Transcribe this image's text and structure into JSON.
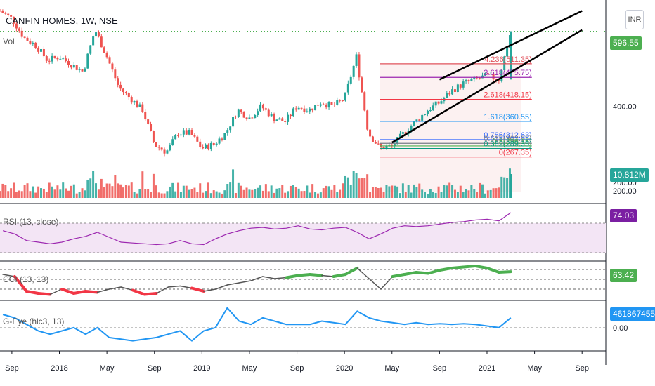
{
  "header": {
    "title": "CANFIN HOMES, 1W, NSE",
    "volume_label": "Vol",
    "currency": "INR"
  },
  "chart_data": [
    {
      "type": "candlestick",
      "title": "CANFIN HOMES, 1W, NSE",
      "ylim": [
        160,
        660
      ],
      "y_ticks": [
        200.0,
        400.0
      ],
      "last_price": 596.55,
      "colors": {
        "up": "#26a69a",
        "down": "#ef5350",
        "bg_band": "#fcf1f1"
      },
      "x_tick_labels": [
        "Sep",
        "2018",
        "May",
        "Sep",
        "2019",
        "May",
        "Sep",
        "2020",
        "May",
        "Sep",
        "2021",
        "May",
        "Sep"
      ],
      "close_series": [
        {
          "x": "2017-08",
          "y": 650
        },
        {
          "x": "2017-09",
          "y": 630
        },
        {
          "x": "2017-10",
          "y": 580
        },
        {
          "x": "2017-11",
          "y": 560
        },
        {
          "x": "2017-12",
          "y": 520
        },
        {
          "x": "2018-01",
          "y": 530
        },
        {
          "x": "2018-02",
          "y": 510
        },
        {
          "x": "2018-03",
          "y": 490
        },
        {
          "x": "2018-04",
          "y": 600
        },
        {
          "x": "2018-05",
          "y": 530
        },
        {
          "x": "2018-06",
          "y": 450
        },
        {
          "x": "2018-07",
          "y": 420
        },
        {
          "x": "2018-08",
          "y": 390
        },
        {
          "x": "2018-09",
          "y": 300
        },
        {
          "x": "2018-10",
          "y": 280
        },
        {
          "x": "2018-11",
          "y": 330
        },
        {
          "x": "2018-12",
          "y": 330
        },
        {
          "x": "2019-01",
          "y": 290
        },
        {
          "x": "2019-02",
          "y": 300
        },
        {
          "x": "2019-03",
          "y": 330
        },
        {
          "x": "2019-04",
          "y": 390
        },
        {
          "x": "2019-05",
          "y": 370
        },
        {
          "x": "2019-06",
          "y": 400
        },
        {
          "x": "2019-07",
          "y": 370
        },
        {
          "x": "2019-08",
          "y": 360
        },
        {
          "x": "2019-09",
          "y": 400
        },
        {
          "x": "2019-10",
          "y": 390
        },
        {
          "x": "2019-11",
          "y": 410
        },
        {
          "x": "2019-12",
          "y": 400
        },
        {
          "x": "2020-01",
          "y": 420
        },
        {
          "x": "2020-02",
          "y": 530
        },
        {
          "x": "2020-03",
          "y": 330
        },
        {
          "x": "2020-04",
          "y": 290
        },
        {
          "x": "2020-05",
          "y": 295
        },
        {
          "x": "2020-06",
          "y": 330
        },
        {
          "x": "2020-07",
          "y": 360
        },
        {
          "x": "2020-08",
          "y": 390
        },
        {
          "x": "2020-09",
          "y": 410
        },
        {
          "x": "2020-10",
          "y": 440
        },
        {
          "x": "2020-11",
          "y": 460
        },
        {
          "x": "2020-12",
          "y": 470
        },
        {
          "x": "2021-01",
          "y": 480
        },
        {
          "x": "2021-02",
          "y": 470
        },
        {
          "x": "2021-03",
          "y": 596.55
        }
      ],
      "fib_levels": [
        {
          "label": "4.236(511.35)",
          "value": 511.35,
          "color": "#e0525c"
        },
        {
          "label": "3.618(475.75)",
          "value": 475.75,
          "color": "#9c27b0"
        },
        {
          "label": "2.618(418.15)",
          "value": 418.15,
          "color": "#f23645"
        },
        {
          "label": "1.618(360.55)",
          "value": 360.55,
          "color": "#2196f3"
        },
        {
          "label": "0.786(312.63)",
          "value": 312.63,
          "color": "#2962ff"
        },
        {
          "label": "0.618(302.95)",
          "value": 302.95,
          "color": "#787b86"
        },
        {
          "label": "0.5(296.15)",
          "value": 296.15,
          "color": "#4caf50"
        },
        {
          "label": "0.382(289.35)",
          "value": 289.35,
          "color": "#089981"
        },
        {
          "label": "0(267.35)",
          "value": 267.35,
          "color": "#f23645"
        }
      ],
      "trendlines": [
        {
          "from": {
            "x": "2020-05",
            "y": 305
          },
          "to": {
            "x": "2021-09",
            "y": 600
          }
        },
        {
          "from": {
            "x": "2020-09",
            "y": 470
          },
          "to": {
            "x": "2021-09",
            "y": 650
          }
        }
      ]
    },
    {
      "type": "bar",
      "title": "Volume",
      "last_value_label": "10.812M",
      "last_value": 10812000,
      "axis_label": "200.00"
    },
    {
      "type": "line",
      "title": "RSI (13, close)",
      "series_name": "RSI (13, close)",
      "last_value": 74.03,
      "color": "#9c27b0",
      "band_color": "#f3e5f5",
      "values": [
        52,
        48,
        40,
        38,
        36,
        38,
        42,
        45,
        50,
        44,
        38,
        37,
        36,
        35,
        36,
        40,
        36,
        35,
        42,
        48,
        52,
        55,
        56,
        54,
        55,
        58,
        54,
        53,
        55,
        56,
        50,
        42,
        48,
        55,
        58,
        57,
        58,
        60,
        62,
        63,
        65,
        66,
        64,
        74
      ]
    },
    {
      "type": "line",
      "title": "CCI (13, 13)",
      "series_name": "CCI (13, 13)",
      "last_value": 63.42,
      "color_pos": "#4caf50",
      "color_neg": "#f23645",
      "values": [
        50,
        40,
        -30,
        -40,
        -45,
        -20,
        -40,
        -30,
        -35,
        -20,
        -10,
        -25,
        -45,
        -40,
        -10,
        -5,
        -15,
        -30,
        -20,
        0,
        10,
        20,
        40,
        30,
        35,
        45,
        50,
        45,
        40,
        50,
        80,
        30,
        -20,
        40,
        50,
        60,
        55,
        70,
        80,
        85,
        90,
        80,
        60,
        63
      ]
    },
    {
      "type": "line",
      "title": "G-Eye (hlc3, 13)",
      "series_name": "G-Eye (hlc3, 13)",
      "last_value_label": "461867455.19",
      "last_value": 461867455.19,
      "axis_label": "0.00",
      "color": "#2196f3",
      "values": [
        0.7,
        0.6,
        0.4,
        0.2,
        0.1,
        0.2,
        0.3,
        0.1,
        0.3,
        0.0,
        -0.05,
        -0.1,
        -0.05,
        0.0,
        0.1,
        0.2,
        -0.1,
        0.2,
        0.3,
        0.9,
        0.5,
        0.4,
        0.6,
        0.5,
        0.4,
        0.4,
        0.4,
        0.5,
        0.45,
        0.4,
        0.8,
        0.6,
        0.5,
        0.45,
        0.4,
        0.45,
        0.4,
        0.42,
        0.4,
        0.42,
        0.4,
        0.35,
        0.3,
        0.6
      ]
    }
  ]
}
